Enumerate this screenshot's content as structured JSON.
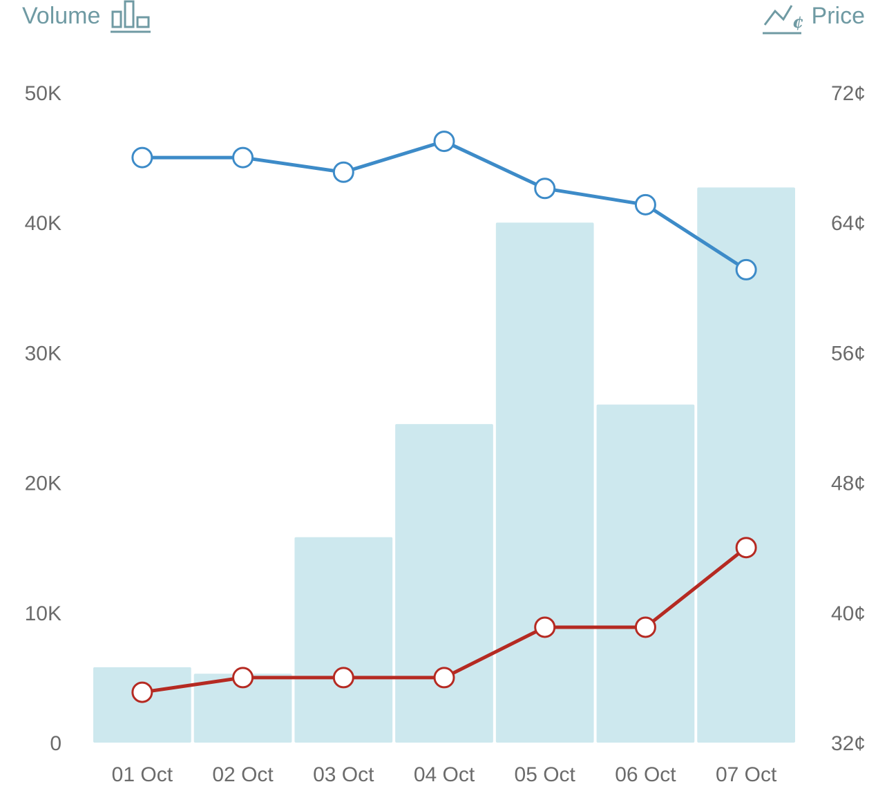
{
  "legend": {
    "left_label": "Volume",
    "left_icon": "bar-chart-icon",
    "right_label": "Price",
    "right_icon": "line-chart-cent-icon"
  },
  "chart_data": {
    "type": "bar",
    "categories": [
      "01 Oct",
      "02 Oct",
      "03 Oct",
      "04 Oct",
      "05 Oct",
      "06 Oct",
      "07 Oct"
    ],
    "bars": {
      "axis": "left",
      "values": [
        5800,
        5300,
        15800,
        24500,
        40000,
        26000,
        42700
      ],
      "color": "#cde8ee"
    },
    "lines": [
      {
        "axis": "right",
        "values": [
          68.0,
          68.0,
          67.1,
          69.0,
          66.1,
          65.1,
          61.1
        ],
        "color": "#3d8bc8"
      },
      {
        "axis": "right",
        "values": [
          35.1,
          36.0,
          36.0,
          36.0,
          39.1,
          39.1,
          44.0
        ],
        "color": "#b52a22"
      }
    ],
    "y_left": {
      "ylim": [
        0,
        50000
      ],
      "ticks": [
        "0",
        "10K",
        "20K",
        "30K",
        "40K",
        "50K"
      ]
    },
    "y_right": {
      "ylim": [
        32,
        72
      ],
      "ticks": [
        "32¢",
        "40¢",
        "48¢",
        "56¢",
        "64¢",
        "72¢"
      ]
    },
    "grid": false,
    "legend_position": "top"
  }
}
